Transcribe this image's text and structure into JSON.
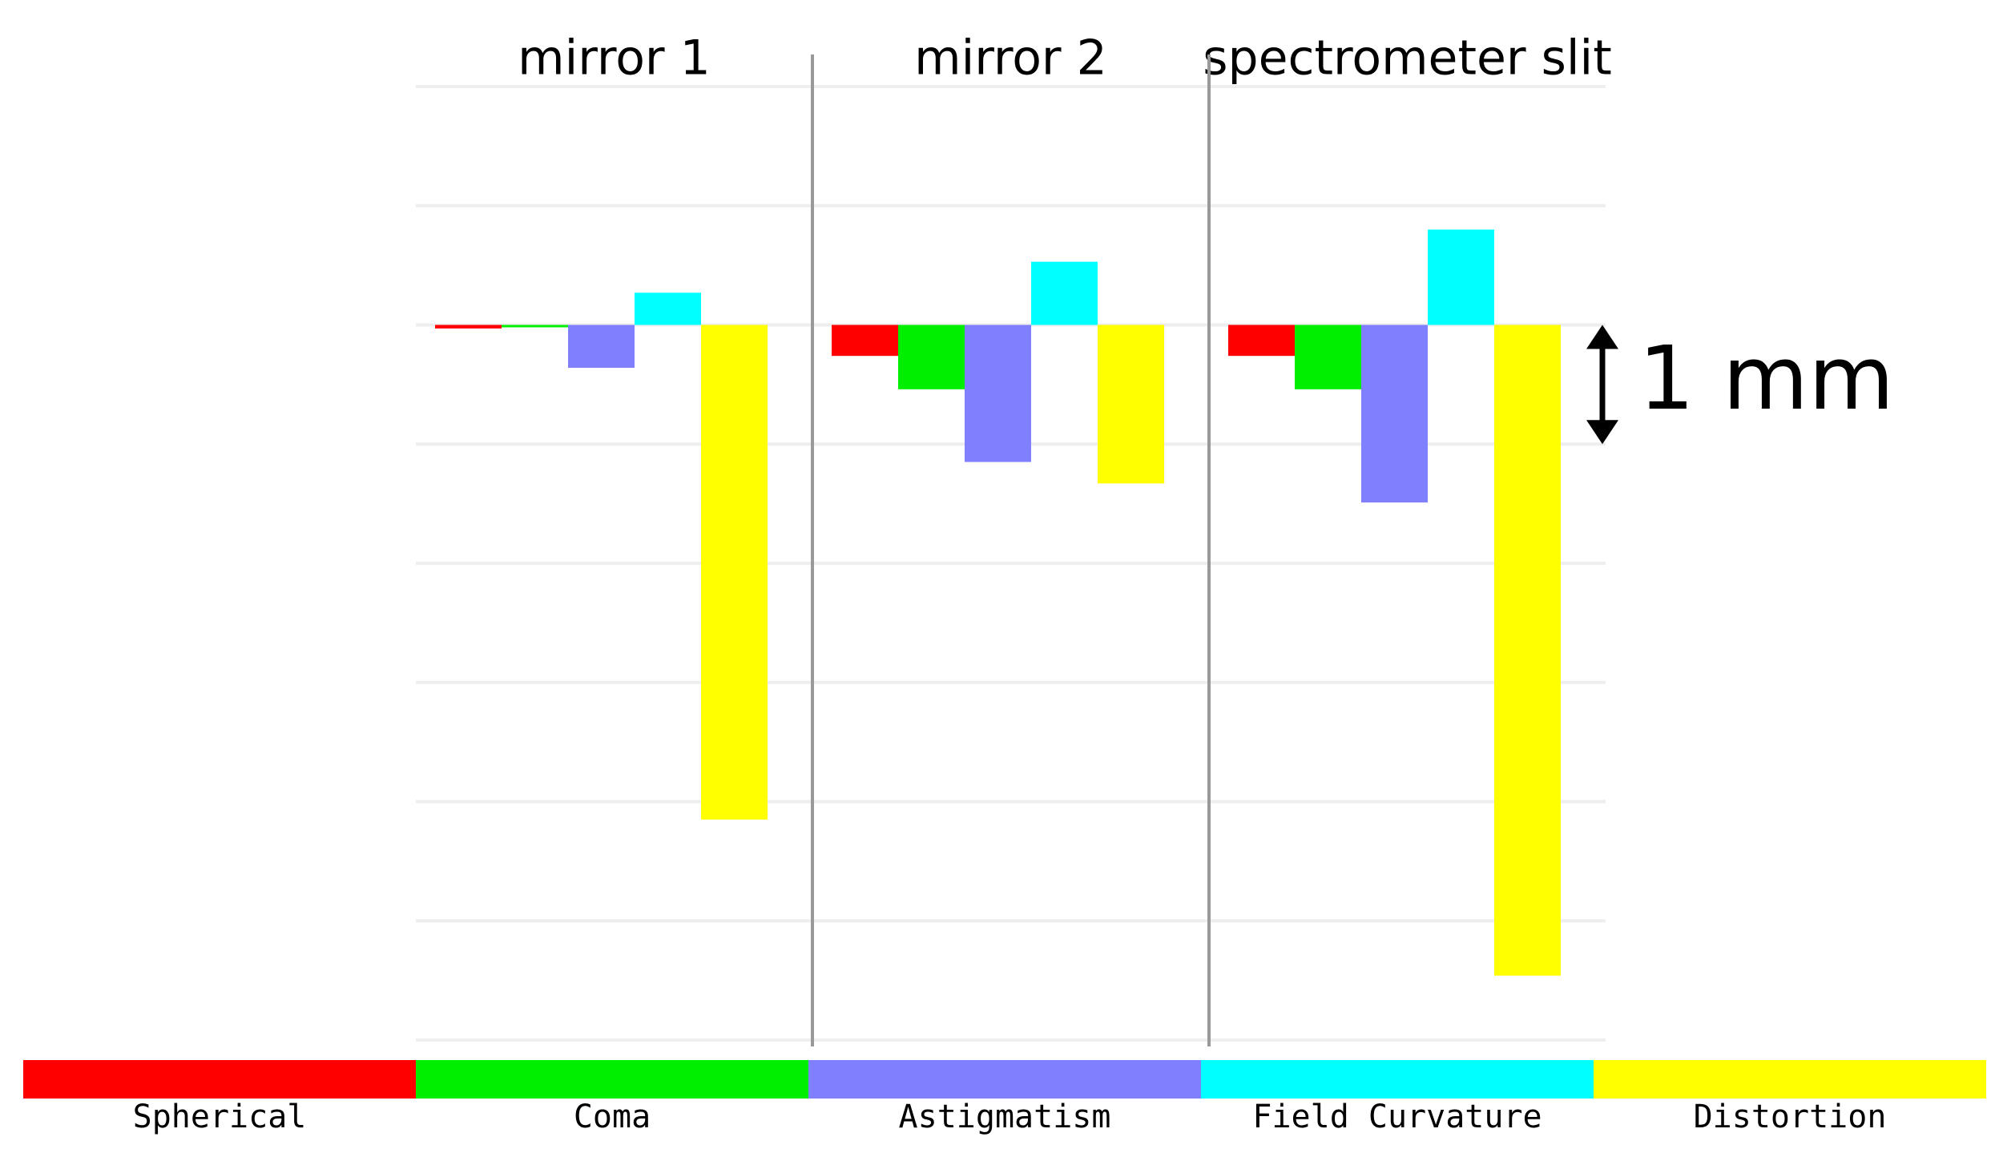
{
  "chart_data": {
    "type": "bar",
    "categories": [
      "mirror 1",
      "mirror 2",
      "spectrometer slit"
    ],
    "series": [
      {
        "name": "Spherical",
        "color": "#ff0000",
        "values": [
          -0.03,
          -0.26,
          -0.26
        ]
      },
      {
        "name": "Coma",
        "color": "#00ee00",
        "values": [
          -0.02,
          -0.54,
          -0.54
        ]
      },
      {
        "name": "Astigmatism",
        "color": "#8080ff",
        "values": [
          -0.36,
          -1.15,
          -1.49
        ]
      },
      {
        "name": "Field Curvature",
        "color": "#00ffff",
        "values": [
          0.27,
          0.53,
          0.8
        ]
      },
      {
        "name": "Distortion",
        "color": "#ffff00",
        "values": [
          -4.15,
          -1.33,
          -5.46
        ]
      }
    ],
    "ylim": [
      -6,
      2
    ],
    "yticks": [
      -6,
      -5,
      -4,
      -3,
      -2,
      -1,
      0,
      1,
      2
    ],
    "grid": true,
    "annotation": "1 mm"
  }
}
